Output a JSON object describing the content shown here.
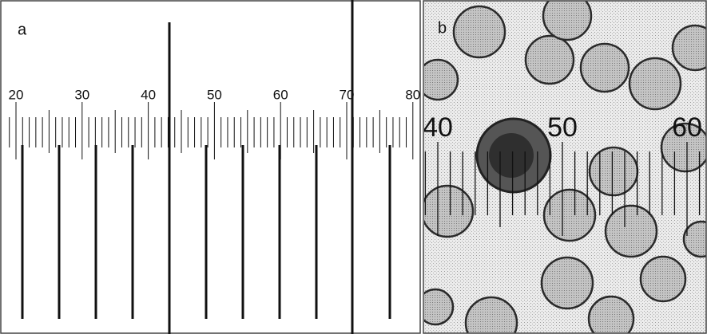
{
  "panels": [
    {
      "label": "a",
      "scale_labels": [
        "20",
        "30",
        "40",
        "50",
        "60",
        "70",
        "80"
      ]
    },
    {
      "label": "b",
      "scale_labels": [
        "40",
        "50",
        "60"
      ]
    }
  ]
}
